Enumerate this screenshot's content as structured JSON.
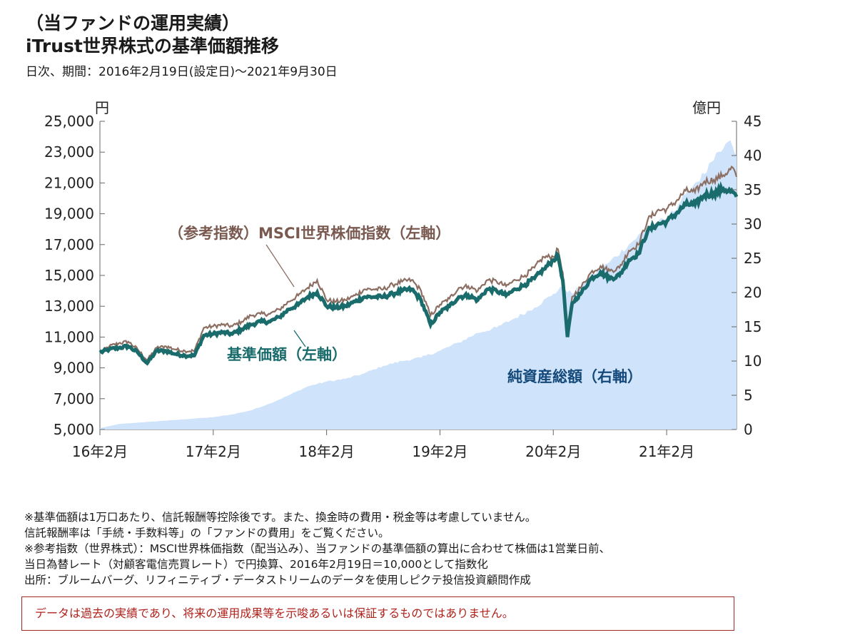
{
  "header": {
    "line1": "（当ファンドの運用実績）",
    "line2": "iTrust世界株式の基準価額推移",
    "period": "日次、期間：2016年2月19日(設定日)～2021年9月30日"
  },
  "chart_data": {
    "type": "line",
    "left_unit": "円",
    "right_unit": "億円",
    "x_ticks": [
      "16年2月",
      "17年2月",
      "18年2月",
      "19年2月",
      "20年2月",
      "21年2月"
    ],
    "x_tick_months": [
      0,
      12,
      24,
      36,
      48,
      60
    ],
    "x_range_months": [
      0,
      67.4
    ],
    "y_left_ticks": [
      "25,000",
      "23,000",
      "21,000",
      "19,000",
      "17,000",
      "15,000",
      "13,000",
      "11,000",
      "9,000",
      "7,000",
      "5,000"
    ],
    "y_left_range": [
      5000,
      25000
    ],
    "y_right_ticks": [
      "45",
      "40",
      "35",
      "30",
      "25",
      "20",
      "15",
      "10",
      "5",
      "0"
    ],
    "y_right_range": [
      0,
      45
    ],
    "series_labels": {
      "index": "（参考指数）MSCI世界株価指数（左軸）",
      "nav": "基準価額（左軸）",
      "aum": "純資産総額（右軸）"
    },
    "colors": {
      "index": "#8c6e62",
      "nav": "#1a6b6b",
      "aum": "#cfe3fb",
      "aum_label": "#14497a",
      "index_label": "#7a5a50",
      "nav_label": "#1a6b6b"
    },
    "series": [
      {
        "name": "（参考指数）MSCI世界株価指数（左軸）",
        "months": [
          0,
          1,
          2,
          3,
          4,
          5,
          6,
          7,
          8,
          9,
          10,
          11,
          12,
          13,
          14,
          15,
          16,
          17,
          18,
          19,
          20,
          21,
          22,
          23,
          24,
          25,
          26,
          27,
          28,
          29,
          30,
          31,
          32,
          33,
          34,
          35,
          36,
          37,
          38,
          39,
          40,
          41,
          42,
          43,
          44,
          45,
          46,
          47,
          48,
          48.5,
          49,
          49.5,
          50,
          51,
          52,
          53,
          54,
          55,
          56,
          57,
          58,
          59,
          60,
          61,
          62,
          63,
          64,
          65,
          66,
          67,
          67.4
        ],
        "values": [
          10000,
          10400,
          10600,
          10700,
          10200,
          9500,
          10300,
          10400,
          10200,
          10100,
          10100,
          11600,
          11700,
          11800,
          11700,
          12000,
          12400,
          12500,
          12500,
          12800,
          13300,
          13700,
          14200,
          14700,
          13400,
          13300,
          13400,
          13700,
          14100,
          14100,
          14100,
          14400,
          14600,
          14700,
          14000,
          12400,
          13100,
          13500,
          14200,
          14300,
          14000,
          14700,
          14600,
          14300,
          14700,
          15000,
          15500,
          16200,
          16200,
          16700,
          15200,
          11400,
          13600,
          14300,
          15200,
          15600,
          15300,
          15500,
          16600,
          17000,
          18600,
          19200,
          19300,
          19800,
          20500,
          20400,
          21100,
          21200,
          21500,
          22000,
          21400
        ]
      },
      {
        "name": "基準価額（左軸）",
        "months": [
          0,
          1,
          2,
          3,
          4,
          5,
          6,
          7,
          8,
          9,
          10,
          11,
          12,
          13,
          14,
          15,
          16,
          17,
          18,
          19,
          20,
          21,
          22,
          23,
          24,
          25,
          26,
          27,
          28,
          29,
          30,
          31,
          32,
          33,
          34,
          35,
          36,
          37,
          38,
          39,
          40,
          41,
          42,
          43,
          44,
          45,
          46,
          47,
          48,
          48.5,
          49,
          49.5,
          50,
          51,
          52,
          53,
          54,
          55,
          56,
          57,
          58,
          59,
          60,
          61,
          62,
          63,
          64,
          65,
          66,
          67,
          67.4
        ],
        "values": [
          10000,
          10200,
          10300,
          10400,
          10000,
          9300,
          10100,
          10100,
          9900,
          9800,
          9800,
          11100,
          11200,
          11300,
          11200,
          11500,
          11800,
          12000,
          12000,
          12300,
          12800,
          13100,
          13600,
          13900,
          13000,
          12900,
          13000,
          13300,
          13600,
          13600,
          13600,
          13800,
          14000,
          14100,
          13400,
          11800,
          12600,
          13000,
          13600,
          13700,
          13400,
          14100,
          14000,
          13700,
          14100,
          14400,
          14800,
          15400,
          16000,
          16300,
          14700,
          11000,
          13200,
          13900,
          14800,
          15200,
          14800,
          15000,
          16000,
          16400,
          17900,
          18300,
          18500,
          19000,
          19600,
          19600,
          20200,
          20300,
          20600,
          20400,
          20100
        ]
      },
      {
        "name": "純資産総額（右軸）",
        "months": [
          0,
          2,
          4,
          6,
          8,
          10,
          12,
          14,
          16,
          18,
          20,
          22,
          24,
          26,
          28,
          30,
          32,
          34,
          36,
          38,
          40,
          42,
          44,
          46,
          48,
          49,
          50,
          52,
          54,
          56,
          58,
          60,
          62,
          63,
          64,
          65,
          66,
          66.5,
          67,
          67.4
        ],
        "values": [
          0.2,
          0.8,
          1.0,
          1.2,
          1.4,
          1.6,
          1.8,
          2.2,
          2.8,
          3.8,
          5.0,
          6.3,
          7.0,
          7.4,
          8.2,
          9.3,
          10.0,
          10.5,
          11.5,
          12.7,
          14.1,
          14.9,
          16.3,
          17.8,
          19.8,
          20.8,
          19.8,
          22.3,
          24.5,
          27.0,
          29.5,
          30.7,
          34.3,
          36.0,
          37.3,
          39.3,
          41.0,
          42.0,
          41.3,
          40.0
        ]
      }
    ]
  },
  "notes": [
    "※基準価額は1万口あたり、信託報酬等控除後です。また、換金時の費用・税金等は考慮していません。",
    "信託報酬率は「手続・手数料等」の「ファンドの費用」をご覧ください。",
    "※参考指数（世界株式）：MSCI世界株価指数（配当込み）、当ファンドの基準価額の算出に合わせて株価は1営業日前、",
    "当日為替レート（対顧客電信売買レート）で円換算、2016年2月19日＝10,000として指数化",
    "出所：ブルームバーグ、リフィニティブ・データストリームのデータを使用しピクテ投信投資顧問作成"
  ],
  "warning": "データは過去の実績であり、将来の運用成果等を示唆あるいは保証するものではありません。"
}
